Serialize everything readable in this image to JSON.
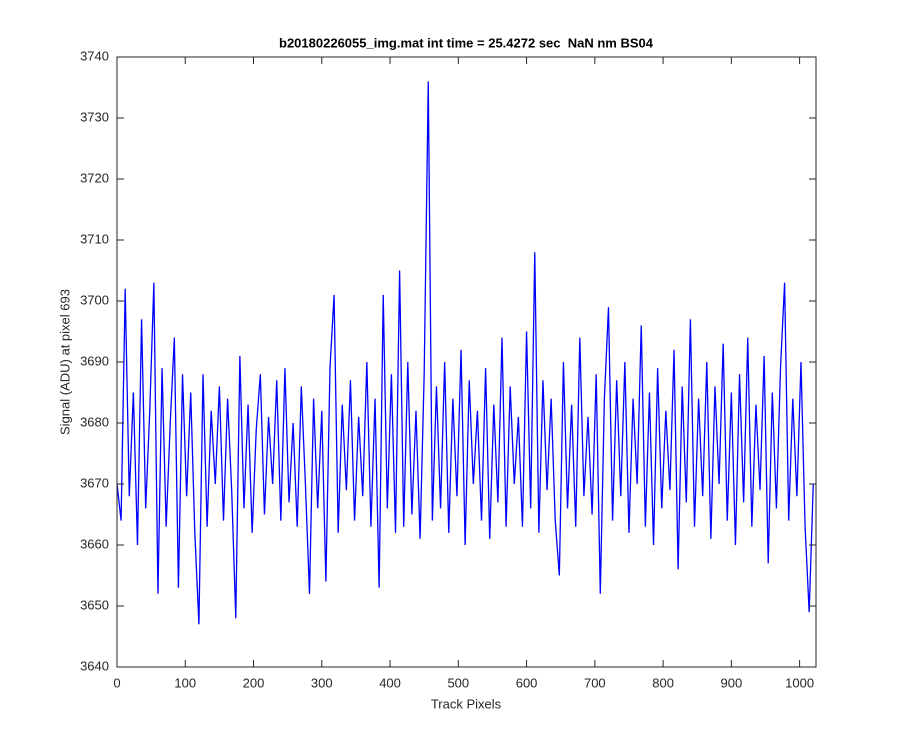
{
  "chart_data": {
    "type": "line",
    "title": "b20180226055_img.mat int time = 25.4272 sec  NaN nm BS04",
    "xlabel": "Track Pixels",
    "ylabel": "Signal (ADU) at pixel 693",
    "xlim": [
      0,
      1024
    ],
    "ylim": [
      3640,
      3740
    ],
    "xticks": [
      0,
      100,
      200,
      300,
      400,
      500,
      600,
      700,
      800,
      900,
      1000
    ],
    "yticks": [
      3640,
      3650,
      3660,
      3670,
      3680,
      3690,
      3700,
      3710,
      3720,
      3730,
      3740
    ],
    "series": [
      {
        "color": "#0000ff",
        "x": [
          0,
          6,
          12,
          18,
          24,
          30,
          36,
          42,
          48,
          54,
          60,
          66,
          72,
          78,
          84,
          90,
          96,
          102,
          108,
          114,
          120,
          126,
          132,
          138,
          144,
          150,
          156,
          162,
          168,
          174,
          180,
          186,
          192,
          198,
          204,
          210,
          216,
          222,
          228,
          234,
          240,
          246,
          252,
          258,
          264,
          270,
          276,
          282,
          288,
          294,
          300,
          306,
          312,
          318,
          324,
          330,
          336,
          342,
          348,
          354,
          360,
          366,
          372,
          378,
          384,
          390,
          396,
          402,
          408,
          414,
          420,
          426,
          432,
          438,
          444,
          450,
          456,
          462,
          468,
          474,
          480,
          486,
          492,
          498,
          504,
          510,
          516,
          522,
          528,
          534,
          540,
          546,
          552,
          558,
          564,
          570,
          576,
          582,
          588,
          594,
          600,
          606,
          612,
          618,
          624,
          630,
          636,
          642,
          648,
          654,
          660,
          666,
          672,
          678,
          684,
          690,
          696,
          702,
          708,
          714,
          720,
          726,
          732,
          738,
          744,
          750,
          756,
          762,
          768,
          774,
          780,
          786,
          792,
          798,
          804,
          810,
          816,
          822,
          828,
          834,
          840,
          846,
          852,
          858,
          864,
          870,
          876,
          882,
          888,
          894,
          900,
          906,
          912,
          918,
          924,
          930,
          936,
          942,
          948,
          954,
          960,
          966,
          972,
          978,
          984,
          990,
          996,
          1002,
          1008,
          1014,
          1020
        ],
        "values": [
          3670,
          3664,
          3702,
          3668,
          3685,
          3660,
          3697,
          3666,
          3682,
          3703,
          3652,
          3689,
          3663,
          3680,
          3694,
          3653,
          3688,
          3668,
          3685,
          3662,
          3647,
          3688,
          3663,
          3682,
          3670,
          3686,
          3664,
          3684,
          3669,
          3648,
          3691,
          3666,
          3683,
          3662,
          3679,
          3688,
          3665,
          3681,
          3670,
          3687,
          3664,
          3689,
          3667,
          3680,
          3663,
          3686,
          3670,
          3652,
          3684,
          3666,
          3682,
          3654,
          3689,
          3701,
          3662,
          3683,
          3669,
          3687,
          3664,
          3681,
          3668,
          3690,
          3663,
          3684,
          3653,
          3701,
          3666,
          3688,
          3662,
          3705,
          3663,
          3690,
          3665,
          3682,
          3661,
          3688,
          3736,
          3664,
          3686,
          3666,
          3690,
          3662,
          3684,
          3668,
          3692,
          3660,
          3687,
          3670,
          3682,
          3664,
          3689,
          3661,
          3683,
          3667,
          3694,
          3663,
          3686,
          3670,
          3681,
          3663,
          3695,
          3666,
          3708,
          3662,
          3687,
          3669,
          3684,
          3664,
          3655,
          3690,
          3666,
          3683,
          3663,
          3694,
          3668,
          3681,
          3665,
          3688,
          3652,
          3684,
          3699,
          3664,
          3687,
          3668,
          3690,
          3662,
          3684,
          3670,
          3696,
          3663,
          3685,
          3660,
          3689,
          3666,
          3682,
          3669,
          3692,
          3656,
          3686,
          3667,
          3697,
          3663,
          3684,
          3668,
          3690,
          3661,
          3686,
          3670,
          3693,
          3664,
          3685,
          3660,
          3688,
          3667,
          3694,
          3663,
          3683,
          3669,
          3691,
          3657,
          3685,
          3666,
          3689,
          3703,
          3664,
          3684,
          3668,
          3690,
          3663,
          3649,
          3670
        ]
      }
    ]
  }
}
